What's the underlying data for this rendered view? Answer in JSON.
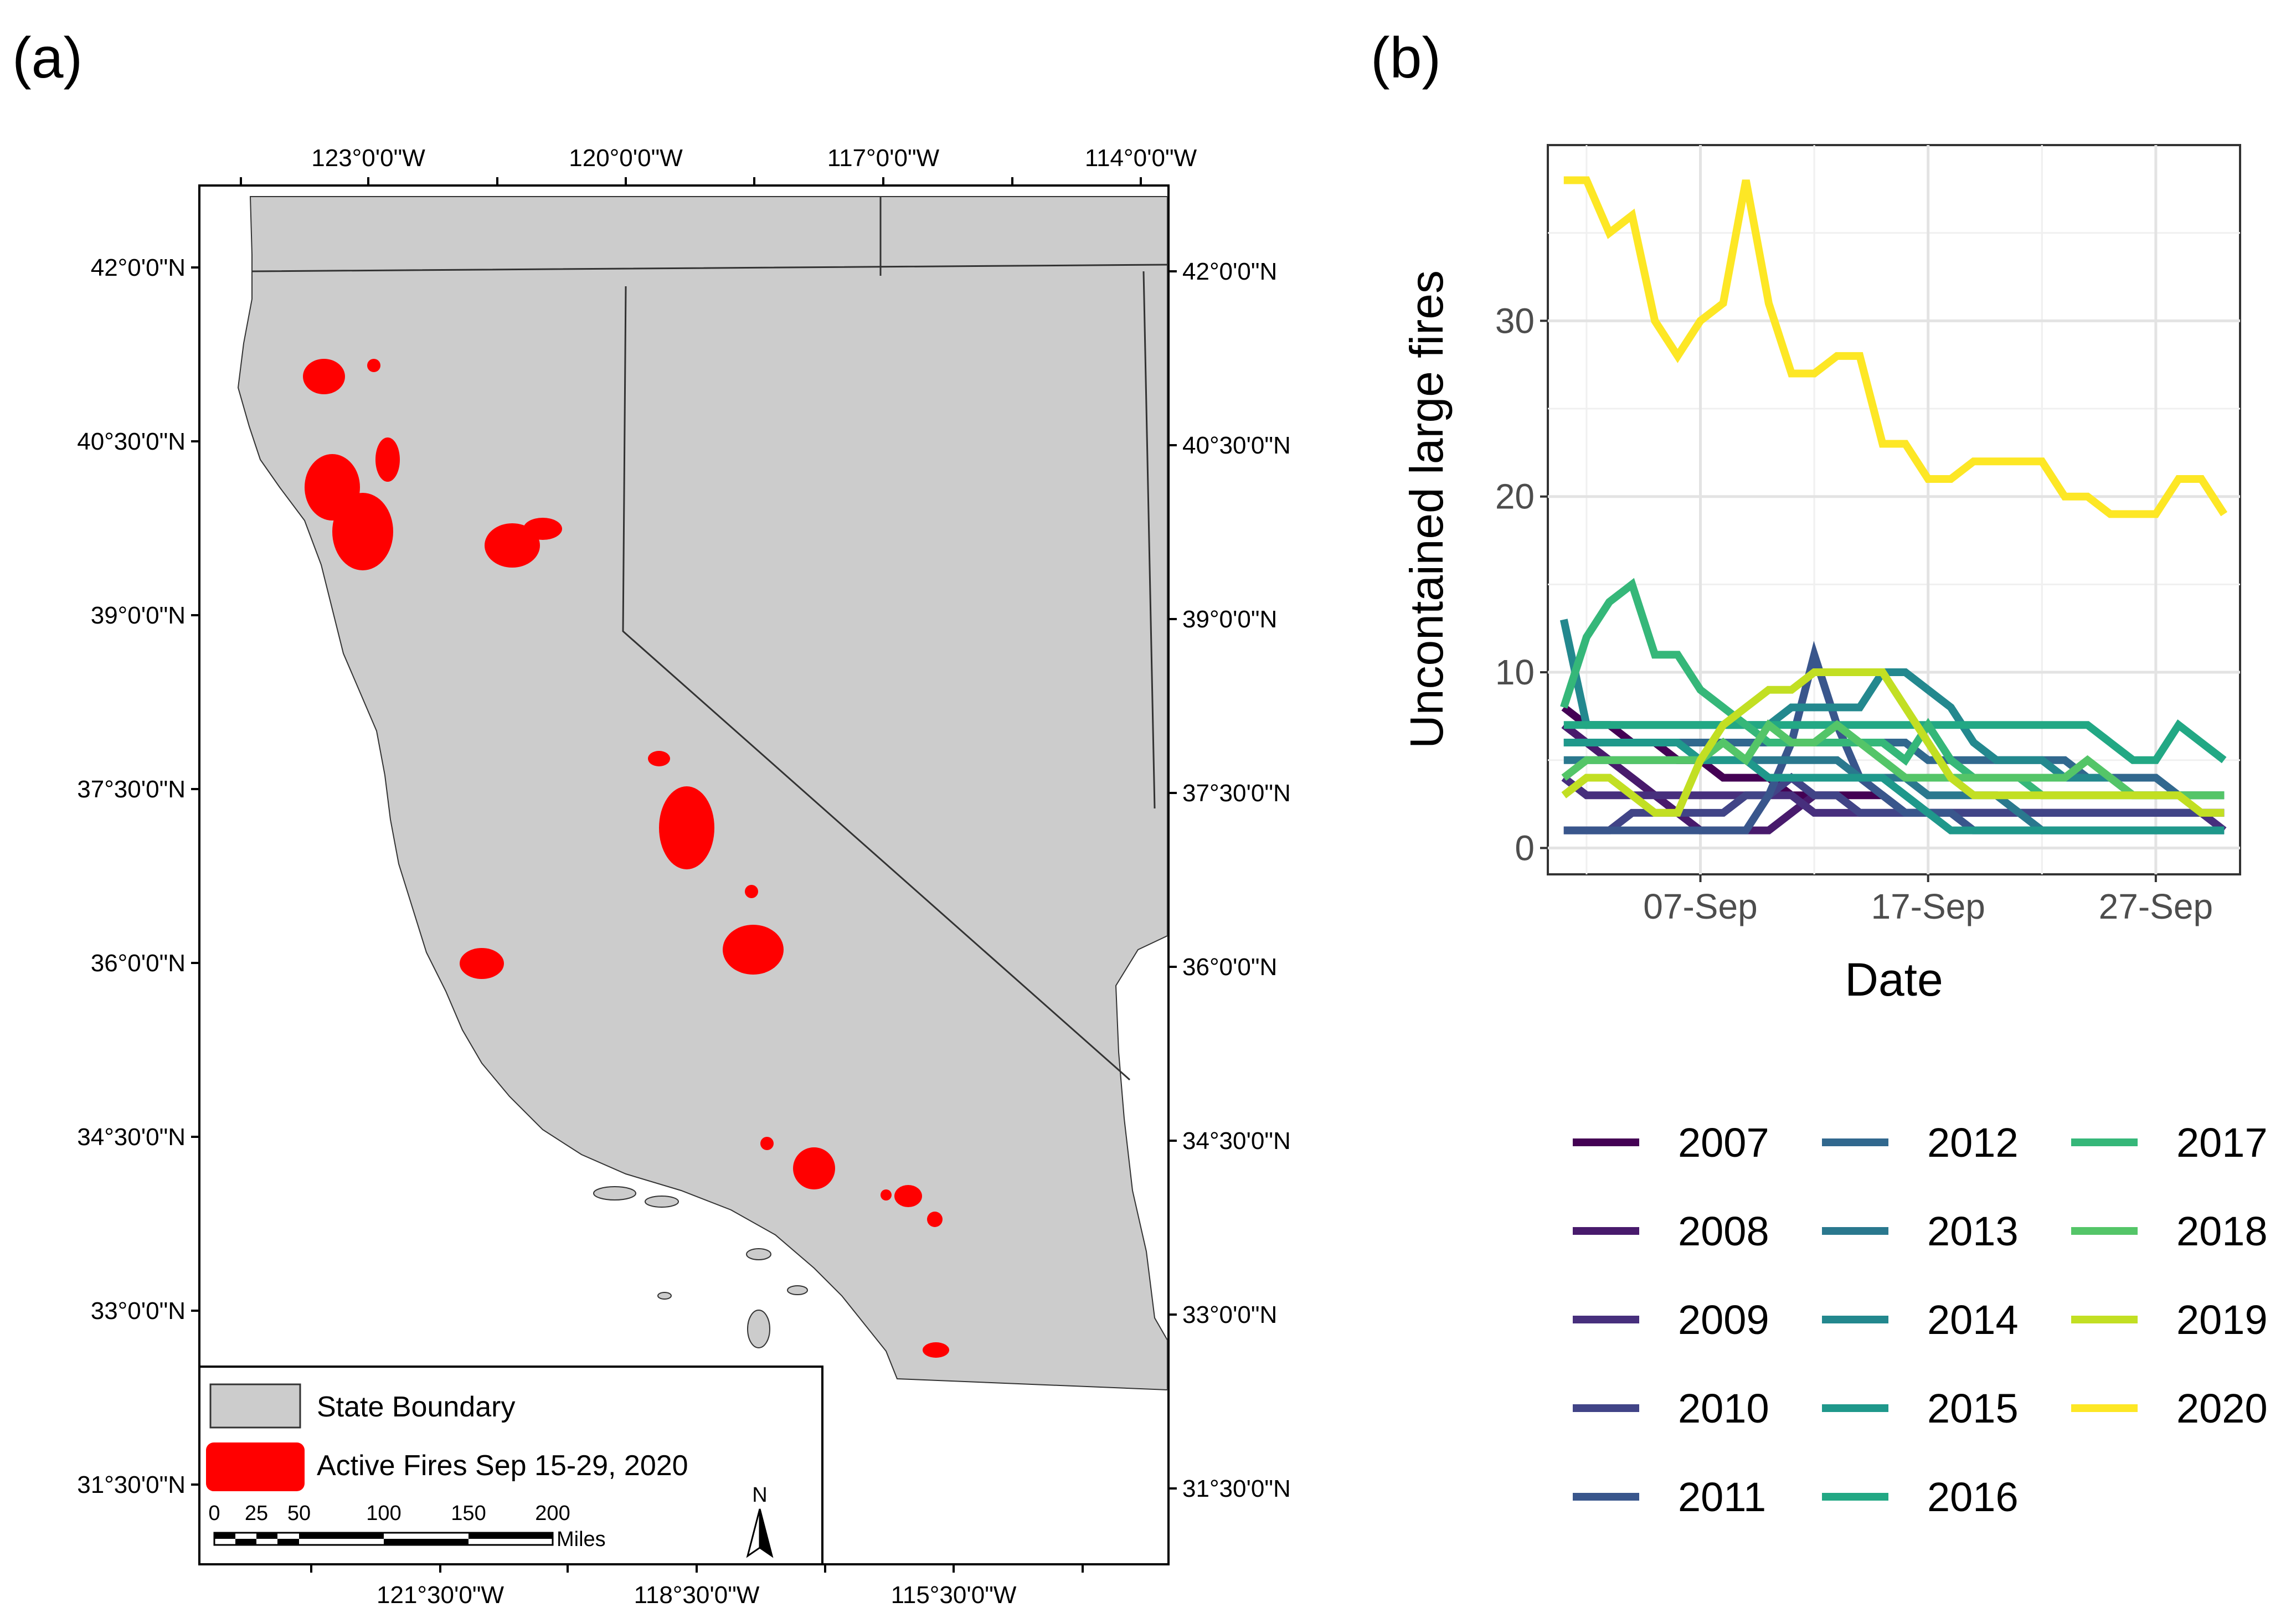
{
  "panel_a": {
    "label": "(a)",
    "top_lon_labels": [
      "123°0'0\"W",
      "120°0'0\"W",
      "117°0'0\"W",
      "114°0'0\"W"
    ],
    "bottom_lon_labels": [
      "121°30'0\"W",
      "118°30'0\"W",
      "115°30'0\"W"
    ],
    "left_lat_labels": [
      "42°0'0\"N",
      "40°30'0\"N",
      "39°0'0\"N",
      "37°30'0\"N",
      "36°0'0\"N",
      "34°30'0\"N",
      "33°0'0\"N",
      "31°30'0\"N"
    ],
    "right_lat_labels": [
      "42°0'0\"N",
      "40°30'0\"N",
      "39°0'0\"N",
      "37°30'0\"N",
      "36°0'0\"N",
      "34°30'0\"N",
      "33°0'0\"N",
      "31°30'0\"N"
    ],
    "legend": {
      "state_label": "State Boundary",
      "fires_label": "Active Fires Sep 15-29, 2020"
    },
    "scalebar": {
      "ticks": [
        "0",
        "25",
        "50",
        "100",
        "150",
        "200"
      ],
      "unit": "Miles"
    },
    "north_label": "N",
    "colors": {
      "land": "#cccccc",
      "fire": "#ff0000",
      "border": "#333333"
    }
  },
  "panel_b": {
    "label": "(b)"
  },
  "chart_data": {
    "type": "line",
    "title": "",
    "xlabel": "Date",
    "ylabel": "Uncontained large fires",
    "x_start_day": 1,
    "x_end_day": 30,
    "xlim": [
      0.3,
      30.7
    ],
    "ylim": [
      -1.5,
      40
    ],
    "x_ticks": [
      {
        "day": 7,
        "label": "07-Sep"
      },
      {
        "day": 17,
        "label": "17-Sep"
      },
      {
        "day": 27,
        "label": "27-Sep"
      }
    ],
    "y_ticks": [
      0,
      10,
      20,
      30
    ],
    "grid": true,
    "legend_position": "bottom",
    "series": [
      {
        "name": "2007",
        "color": "#440154",
        "values": [
          8,
          7,
          7,
          6,
          6,
          5,
          5,
          4,
          4,
          4,
          3,
          3,
          3,
          3,
          3,
          2,
          2,
          2,
          2,
          2,
          2,
          2,
          2,
          2,
          2,
          2,
          2,
          2,
          2,
          2
        ]
      },
      {
        "name": "2008",
        "color": "#481a6c",
        "values": [
          7,
          6,
          5,
          4,
          3,
          2,
          1,
          1,
          1,
          1,
          2,
          3,
          3,
          2,
          2,
          2,
          2,
          2,
          2,
          2,
          2,
          2,
          2,
          2,
          2,
          2,
          2,
          2,
          2,
          2
        ]
      },
      {
        "name": "2009",
        "color": "#472f7d",
        "values": [
          4,
          3,
          3,
          3,
          3,
          3,
          3,
          3,
          3,
          3,
          3,
          2,
          2,
          2,
          2,
          2,
          2,
          2,
          2,
          2,
          2,
          2,
          2,
          2,
          2,
          2,
          2,
          2,
          2,
          1
        ]
      },
      {
        "name": "2010",
        "color": "#414487",
        "values": [
          1,
          1,
          1,
          2,
          2,
          2,
          2,
          2,
          3,
          3,
          4,
          3,
          3,
          2,
          2,
          2,
          2,
          2,
          2,
          2,
          2,
          2,
          2,
          2,
          2,
          2,
          2,
          2,
          2,
          2
        ]
      },
      {
        "name": "2011",
        "color": "#39568c",
        "values": [
          1,
          1,
          1,
          1,
          1,
          1,
          1,
          1,
          1,
          3,
          6,
          11,
          7,
          4,
          3,
          2,
          2,
          2,
          1,
          1,
          1,
          1,
          1,
          1,
          1,
          1,
          1,
          1,
          1,
          1
        ]
      },
      {
        "name": "2012",
        "color": "#31688e",
        "values": [
          6,
          6,
          6,
          6,
          6,
          6,
          6,
          6,
          6,
          6,
          6,
          6,
          6,
          6,
          6,
          6,
          5,
          5,
          5,
          5,
          5,
          5,
          5,
          4,
          4,
          4,
          4,
          3,
          3,
          3
        ]
      },
      {
        "name": "2013",
        "color": "#2a788e",
        "values": [
          5,
          5,
          5,
          5,
          5,
          5,
          5,
          5,
          5,
          5,
          5,
          5,
          5,
          4,
          4,
          4,
          3,
          3,
          3,
          3,
          2,
          1,
          1,
          1,
          1,
          1,
          1,
          1,
          1,
          1
        ]
      },
      {
        "name": "2014",
        "color": "#23888e",
        "values": [
          13,
          7,
          7,
          7,
          7,
          7,
          7,
          7,
          7,
          7,
          8,
          8,
          8,
          8,
          10,
          10,
          9,
          8,
          6,
          5,
          5,
          5,
          4,
          4,
          4,
          3,
          3,
          3,
          3,
          3
        ]
      },
      {
        "name": "2015",
        "color": "#1f988b",
        "values": [
          6,
          6,
          6,
          6,
          6,
          6,
          5,
          5,
          5,
          4,
          4,
          4,
          4,
          4,
          4,
          3,
          2,
          1,
          1,
          1,
          1,
          1,
          1,
          1,
          1,
          1,
          1,
          1,
          1,
          1
        ]
      },
      {
        "name": "2016",
        "color": "#22a884",
        "values": [
          7,
          7,
          7,
          7,
          7,
          7,
          7,
          7,
          7,
          7,
          7,
          7,
          7,
          7,
          7,
          7,
          7,
          7,
          7,
          7,
          7,
          7,
          7,
          7,
          6,
          5,
          5,
          7,
          6,
          5
        ]
      },
      {
        "name": "2017",
        "color": "#35b779",
        "values": [
          8,
          12,
          14,
          15,
          11,
          11,
          9,
          8,
          7,
          6,
          6,
          6,
          6,
          6,
          6,
          5,
          7,
          5,
          4,
          4,
          4,
          3,
          3,
          3,
          3,
          3,
          3,
          3,
          3,
          3
        ]
      },
      {
        "name": "2018",
        "color": "#54c568",
        "values": [
          4,
          5,
          5,
          5,
          5,
          5,
          5,
          6,
          5,
          7,
          6,
          6,
          7,
          6,
          5,
          4,
          4,
          4,
          4,
          4,
          4,
          4,
          4,
          5,
          4,
          3,
          3,
          3,
          3,
          3
        ]
      },
      {
        "name": "2019",
        "color": "#c2df23",
        "values": [
          3,
          4,
          4,
          3,
          2,
          2,
          5,
          7,
          8,
          9,
          9,
          10,
          10,
          10,
          10,
          8,
          6,
          4,
          3,
          3,
          3,
          3,
          3,
          3,
          3,
          3,
          3,
          3,
          2,
          2
        ]
      },
      {
        "name": "2020",
        "color": "#fde725",
        "values": [
          38,
          38,
          35,
          36,
          30,
          28,
          30,
          31,
          38,
          31,
          27,
          27,
          28,
          28,
          23,
          23,
          21,
          21,
          22,
          22,
          22,
          22,
          20,
          20,
          19,
          19,
          19,
          21,
          21,
          19
        ]
      }
    ]
  }
}
